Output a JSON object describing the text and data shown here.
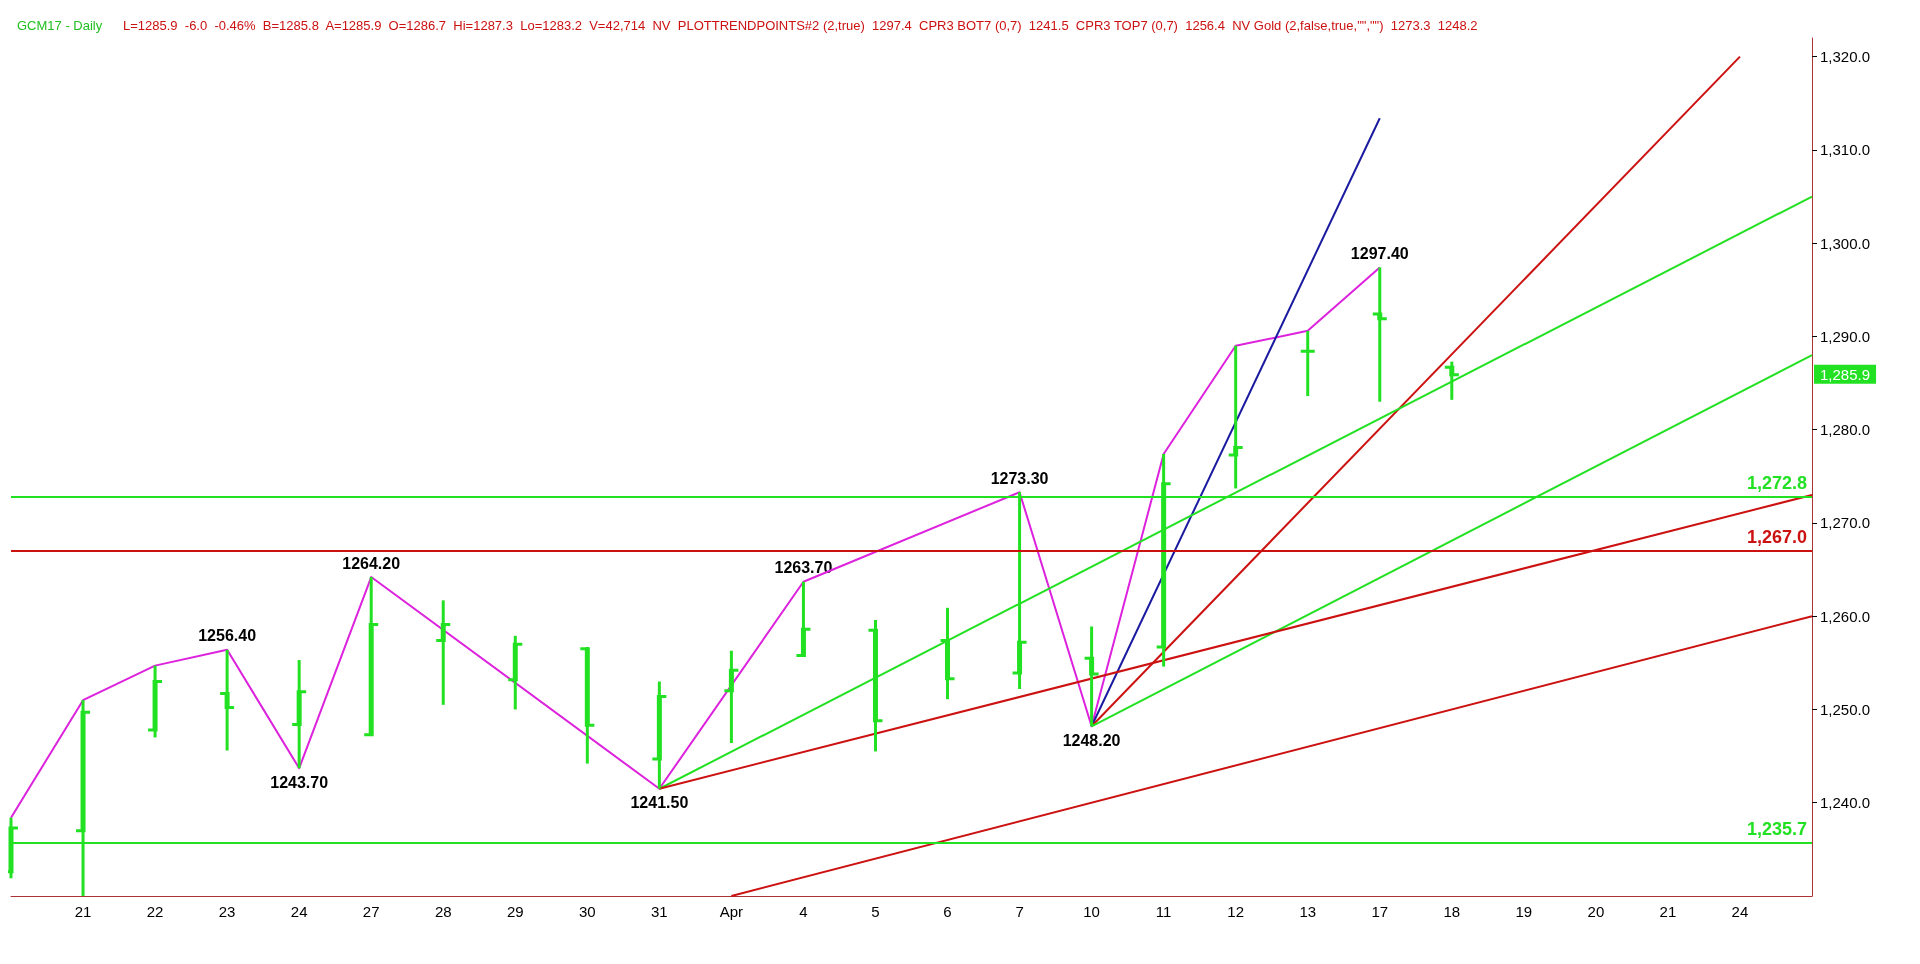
{
  "chart_data": {
    "type": "candlestick",
    "title": "GCM17 - Daily",
    "subtitle": "L=1285.9  -6.0  -0.46%  B=1285.8  A=1285.9  O=1286.7  Hi=1287.3  Lo=1283.2  V=42,714  NV  PLOTTRENDPOINTS#2 (2,true)  1297.4  CPR3 BOT7 (0,7)  1241.5  CPR3 TOP7 (0,7)  1256.4  NV Gold (2,false,true,\"\",\"\")  1273.3  1248.2",
    "categories": [
      null,
      "21",
      "22",
      "23",
      "24",
      "27",
      "28",
      "29",
      "30",
      "31",
      "Apr",
      "4",
      "5",
      "6",
      "7",
      "10",
      "11",
      "12",
      "13",
      "17",
      "18",
      "19",
      "20",
      "21",
      "24",
      null
    ],
    "color": "#22e022",
    "ohlc": [
      [
        1232.6,
        1238.4,
        1231.9,
        1237.3
      ],
      [
        1237.0,
        1251.0,
        1230.0,
        1249.7
      ],
      [
        1247.8,
        1254.7,
        1247.0,
        1253.0
      ],
      [
        1251.7,
        1256.4,
        1245.6,
        1250.2
      ],
      [
        1248.4,
        1255.3,
        1243.7,
        1251.9
      ],
      [
        1247.3,
        1264.2,
        1247.3,
        1259.1
      ],
      [
        1257.4,
        1261.7,
        1250.5,
        1259.1
      ],
      [
        1253.2,
        1257.9,
        1250.0,
        1257.0
      ],
      [
        1256.5,
        1256.7,
        1244.2,
        1248.3
      ],
      [
        1244.7,
        1253.0,
        1241.5,
        1251.4
      ],
      [
        1252.0,
        1256.3,
        1246.4,
        1254.2
      ],
      [
        1255.8,
        1263.7,
        1255.8,
        1258.6
      ],
      [
        1258.5,
        1259.6,
        1245.5,
        1248.8
      ],
      [
        1257.4,
        1260.9,
        1251.1,
        1253.3
      ],
      [
        1253.9,
        1273.3,
        1252.2,
        1257.2
      ],
      [
        1255.5,
        1258.9,
        1248.2,
        1253.8
      ],
      [
        1256.7,
        1277.4,
        1254.6,
        1274.2
      ],
      [
        1277.3,
        1289.0,
        1273.7,
        1278.1
      ],
      [
        1288.4,
        1290.6,
        1283.6,
        1288.4
      ],
      [
        1292.4,
        1297.4,
        1283.0,
        1291.9
      ],
      [
        1286.7,
        1287.3,
        1283.2,
        1285.9
      ],
      null,
      null,
      null,
      null,
      null
    ],
    "series": [
      {
        "type": "line",
        "color": "#dd22dd",
        "values": [
          1238.4,
          1251.0,
          1254.7,
          1256.4,
          1243.7,
          1264.2,
          null,
          null,
          null,
          1241.5,
          null,
          1263.7,
          null,
          null,
          1273.3,
          1248.2,
          1277.4,
          1289.0,
          1290.6,
          1297.4,
          null,
          null,
          null,
          null,
          null,
          null
        ]
      },
      {
        "type": "line",
        "color": "#1a1aa0",
        "values": [
          null,
          null,
          null,
          null,
          null,
          null,
          null,
          null,
          null,
          null,
          null,
          null,
          null,
          null,
          null,
          1248.2,
          null,
          null,
          null,
          1313.4,
          null,
          null,
          null,
          null,
          null,
          null
        ]
      },
      {
        "type": "line",
        "color": "#cc1111",
        "values": [
          null,
          null,
          null,
          null,
          null,
          null,
          null,
          null,
          null,
          null,
          null,
          null,
          null,
          null,
          null,
          1248.2,
          null,
          null,
          null,
          null,
          null,
          null,
          null,
          null,
          1320.0,
          null
        ]
      },
      {
        "type": "line",
        "color": "#22e022",
        "values": [
          null,
          null,
          null,
          null,
          null,
          null,
          null,
          null,
          null,
          1241.5,
          null,
          null,
          null,
          null,
          null,
          null,
          null,
          null,
          null,
          null,
          null,
          null,
          null,
          null,
          null,
          1305.0
        ]
      },
      {
        "type": "line",
        "color": "#22e022",
        "values": [
          null,
          null,
          null,
          null,
          null,
          null,
          null,
          null,
          null,
          null,
          null,
          null,
          null,
          null,
          null,
          1248.2,
          null,
          null,
          null,
          null,
          null,
          null,
          null,
          null,
          null,
          1288.0
        ]
      },
      {
        "type": "line",
        "color": "#cc1111",
        "values": [
          null,
          null,
          null,
          null,
          null,
          null,
          null,
          null,
          null,
          1241.5,
          null,
          null,
          null,
          null,
          null,
          null,
          null,
          null,
          null,
          null,
          null,
          null,
          null,
          null,
          null,
          1273.0
        ]
      },
      {
        "type": "line",
        "color": "#cc1111",
        "values": [
          null,
          null,
          null,
          null,
          null,
          null,
          null,
          null,
          null,
          null,
          1230.0,
          null,
          null,
          null,
          null,
          null,
          null,
          null,
          null,
          null,
          null,
          null,
          null,
          null,
          null,
          1260.0
        ]
      }
    ],
    "ylim": [
      1230,
      1322
    ],
    "yticks": [
      {
        "value": 1240,
        "label": "1,240.0"
      },
      {
        "value": 1250,
        "label": "1,250.0"
      },
      {
        "value": 1260,
        "label": "1,260.0"
      },
      {
        "value": 1270,
        "label": "1,270.0"
      },
      {
        "value": 1280,
        "label": "1,280.0"
      },
      {
        "value": 1290,
        "label": "1,290.0"
      },
      {
        "value": 1300,
        "label": "1,300.0"
      },
      {
        "value": 1310,
        "label": "1,310.0"
      },
      {
        "value": 1320,
        "label": "1,320.0"
      }
    ],
    "ref_lines": [
      {
        "axis": "y",
        "value": 1272.8,
        "label": "1,272.8",
        "color": "#22e022"
      },
      {
        "axis": "y",
        "value": 1267.0,
        "label": "1,267.0",
        "color": "#cc1111"
      },
      {
        "axis": "y",
        "value": 1235.7,
        "label": "1,235.7",
        "color": "#22e022"
      }
    ],
    "annotations": [
      {
        "text": "1256.40",
        "x": "23",
        "y": 1256.4
      },
      {
        "text": "1243.70",
        "x": "24",
        "y": 1243.7
      },
      {
        "text": "1264.20",
        "x": "27",
        "y": 1264.2
      },
      {
        "text": "1241.50",
        "x": "31",
        "y": 1241.5
      },
      {
        "text": "1263.70",
        "x": "4",
        "y": 1263.7
      },
      {
        "text": "1273.30",
        "x": "7",
        "y": 1273.3
      },
      {
        "text": "1248.20",
        "x": "10",
        "y": 1248.2
      },
      {
        "text": "1297.40",
        "x": "17",
        "y": 1297.4
      },
      "1,285.9"
    ],
    "grid": false
  }
}
